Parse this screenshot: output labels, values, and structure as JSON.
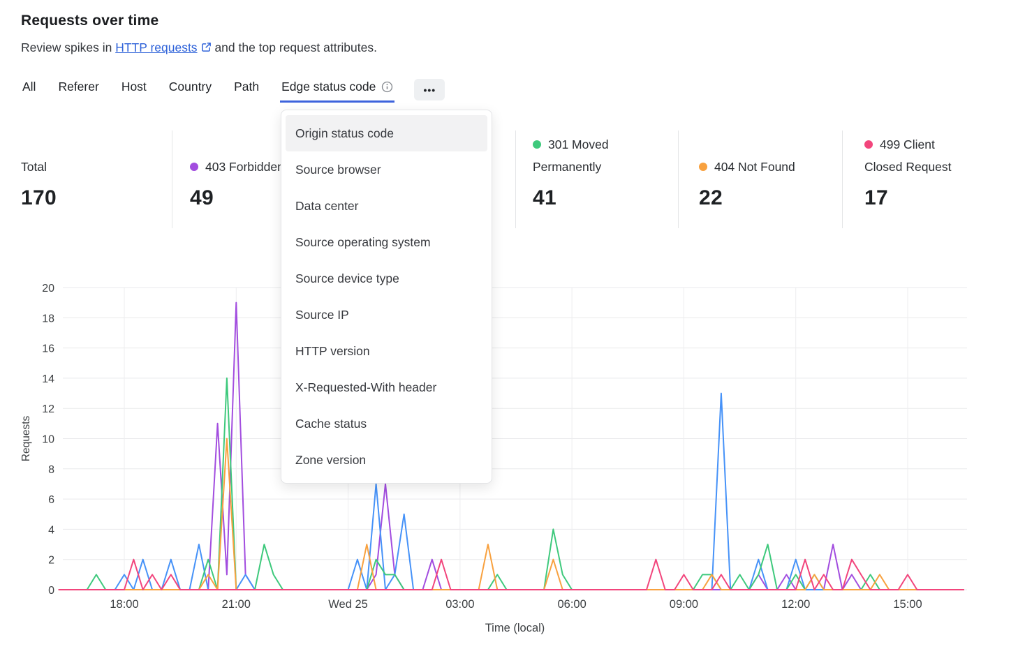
{
  "header": {
    "title": "Requests over time",
    "subtitle_prefix": "Review spikes in",
    "link_text": "HTTP requests",
    "subtitle_suffix": "and the top request attributes."
  },
  "icons": {
    "ellipsis": "•••"
  },
  "tabs": {
    "items": [
      {
        "label": "All",
        "active": false,
        "has_info_icon": false
      },
      {
        "label": "Referer",
        "active": false,
        "has_info_icon": false
      },
      {
        "label": "Host",
        "active": false,
        "has_info_icon": false
      },
      {
        "label": "Country",
        "active": false,
        "has_info_icon": false
      },
      {
        "label": "Path",
        "active": false,
        "has_info_icon": false
      },
      {
        "label": "Edge status code",
        "active": true,
        "has_info_icon": true
      }
    ]
  },
  "dropdown_menu": {
    "items": [
      {
        "label": "Origin status code",
        "highlighted": true
      },
      {
        "label": "Source browser",
        "highlighted": false
      },
      {
        "label": "Data center",
        "highlighted": false
      },
      {
        "label": "Source operating system",
        "highlighted": false
      },
      {
        "label": "Source device type",
        "highlighted": false
      },
      {
        "label": "Source IP",
        "highlighted": false
      },
      {
        "label": "HTTP version",
        "highlighted": false
      },
      {
        "label": "X-Requested-With header",
        "highlighted": false
      },
      {
        "label": "Cache status",
        "highlighted": false
      },
      {
        "label": "Zone version",
        "highlighted": false
      }
    ]
  },
  "stats": [
    {
      "label": "Total",
      "value": "170",
      "dot_color": null
    },
    {
      "label": "403 Forbidden",
      "value": "49",
      "dot_color": "#a24ddf"
    },
    {
      "label": "301 Moved Permanently",
      "value": "41",
      "dot_color": "#3ec97c"
    },
    {
      "label": "404 Not Found",
      "value": "22",
      "dot_color": "#f8a13f"
    },
    {
      "label": "499 Client Closed Request",
      "value": "17",
      "dot_color": "#f2457c"
    }
  ],
  "chart_data": {
    "type": "line",
    "title": "Requests over time",
    "xlabel": "Time (local)",
    "ylabel": "Requests",
    "ylim": [
      0,
      20
    ],
    "y_ticks": [
      0,
      2,
      4,
      6,
      8,
      10,
      12,
      14,
      16,
      18,
      20
    ],
    "grid": true,
    "x_start": "16:15",
    "x_interval_minutes": 15,
    "n_points": 98,
    "x_tick_indices": [
      7,
      19,
      31,
      43,
      55,
      67,
      79,
      91
    ],
    "x_tick_labels": [
      "18:00",
      "21:00",
      "Wed 25",
      "03:00",
      "06:00",
      "09:00",
      "12:00",
      "15:00"
    ],
    "series": [
      {
        "name": "403 Forbidden",
        "color": "#a24ddf",
        "values": [
          0,
          0,
          0,
          0,
          0,
          0,
          0,
          0,
          0,
          0,
          0,
          0,
          0,
          0,
          0,
          0,
          0,
          11,
          1,
          19,
          1,
          0,
          0,
          0,
          0,
          0,
          0,
          0,
          0,
          0,
          0,
          0,
          0,
          0,
          1,
          7,
          1,
          0,
          0,
          0,
          2,
          0,
          0,
          0,
          0,
          0,
          0,
          0,
          0,
          0,
          0,
          0,
          0,
          0,
          0,
          0,
          0,
          0,
          0,
          0,
          0,
          0,
          0,
          0,
          0,
          0,
          0,
          0,
          0,
          0,
          0,
          0,
          0,
          0,
          0,
          1,
          0,
          0,
          1,
          0,
          0,
          0,
          0,
          3,
          0,
          1,
          0,
          0,
          0,
          0,
          0,
          0,
          0,
          0,
          0,
          0,
          0,
          0
        ]
      },
      {
        "name": "series-blue",
        "color": "#4692f8",
        "values": [
          0,
          0,
          0,
          0,
          0,
          0,
          0,
          1,
          0,
          2,
          0,
          0,
          2,
          0,
          0,
          3,
          0,
          0,
          0,
          0,
          1,
          0,
          0,
          0,
          0,
          0,
          0,
          0,
          0,
          0,
          0,
          0,
          2,
          0,
          7,
          0,
          1,
          5,
          0,
          0,
          0,
          0,
          0,
          0,
          0,
          0,
          0,
          0,
          0,
          0,
          0,
          0,
          0,
          0,
          0,
          0,
          0,
          0,
          0,
          0,
          0,
          0,
          0,
          0,
          0,
          0,
          0,
          0,
          0,
          0,
          0,
          13,
          0,
          0,
          0,
          2,
          0,
          0,
          0,
          2,
          0,
          0,
          0,
          0,
          0,
          0,
          0,
          0,
          0,
          0,
          0,
          0,
          0,
          0,
          0,
          0,
          0,
          0
        ]
      },
      {
        "name": "301 Moved Permanently",
        "color": "#3ec97c",
        "values": [
          0,
          0,
          0,
          0,
          1,
          0,
          0,
          0,
          0,
          0,
          0,
          0,
          0,
          0,
          0,
          0,
          2,
          0,
          14,
          0,
          0,
          0,
          3,
          1,
          0,
          0,
          0,
          0,
          0,
          0,
          0,
          0,
          0,
          0,
          2,
          1,
          1,
          0,
          0,
          0,
          0,
          0,
          0,
          0,
          0,
          0,
          0,
          1,
          0,
          0,
          0,
          0,
          0,
          4,
          1,
          0,
          0,
          0,
          0,
          0,
          0,
          0,
          0,
          0,
          0,
          0,
          0,
          0,
          0,
          1,
          1,
          0,
          0,
          1,
          0,
          1,
          3,
          0,
          0,
          1,
          0,
          1,
          0,
          0,
          0,
          0,
          0,
          1,
          0,
          0,
          0,
          0,
          0,
          0,
          0,
          0,
          0,
          0
        ]
      },
      {
        "name": "404 Not Found",
        "color": "#f8a13f",
        "values": [
          0,
          0,
          0,
          0,
          0,
          0,
          0,
          0,
          0,
          0,
          0,
          0,
          0,
          0,
          0,
          0,
          1,
          0,
          10,
          0,
          0,
          0,
          0,
          0,
          0,
          0,
          0,
          0,
          0,
          0,
          0,
          0,
          0,
          3,
          0,
          0,
          0,
          0,
          0,
          0,
          0,
          0,
          0,
          0,
          0,
          0,
          3,
          0,
          0,
          0,
          0,
          0,
          0,
          2,
          0,
          0,
          0,
          0,
          0,
          0,
          0,
          0,
          0,
          0,
          0,
          0,
          0,
          0,
          0,
          0,
          1,
          0,
          0,
          0,
          0,
          0,
          0,
          0,
          0,
          0,
          0,
          1,
          0,
          0,
          0,
          0,
          0,
          0,
          1,
          0,
          0,
          0,
          0,
          0,
          0,
          0,
          0,
          0
        ]
      },
      {
        "name": "499 Client Closed Request",
        "color": "#f2457c",
        "values": [
          0,
          0,
          0,
          0,
          0,
          0,
          0,
          0,
          2,
          0,
          1,
          0,
          1,
          0,
          0,
          0,
          0,
          0,
          0,
          0,
          0,
          0,
          0,
          0,
          0,
          0,
          0,
          0,
          0,
          0,
          0,
          0,
          0,
          0,
          0,
          0,
          0,
          0,
          0,
          0,
          0,
          2,
          0,
          0,
          0,
          0,
          0,
          0,
          0,
          0,
          0,
          0,
          0,
          0,
          0,
          0,
          0,
          0,
          0,
          0,
          0,
          0,
          0,
          0,
          2,
          0,
          0,
          1,
          0,
          0,
          0,
          1,
          0,
          0,
          0,
          0,
          0,
          0,
          0,
          0,
          2,
          0,
          1,
          0,
          0,
          2,
          1,
          0,
          0,
          0,
          0,
          1,
          0,
          0,
          0,
          0,
          0,
          0
        ]
      }
    ]
  }
}
